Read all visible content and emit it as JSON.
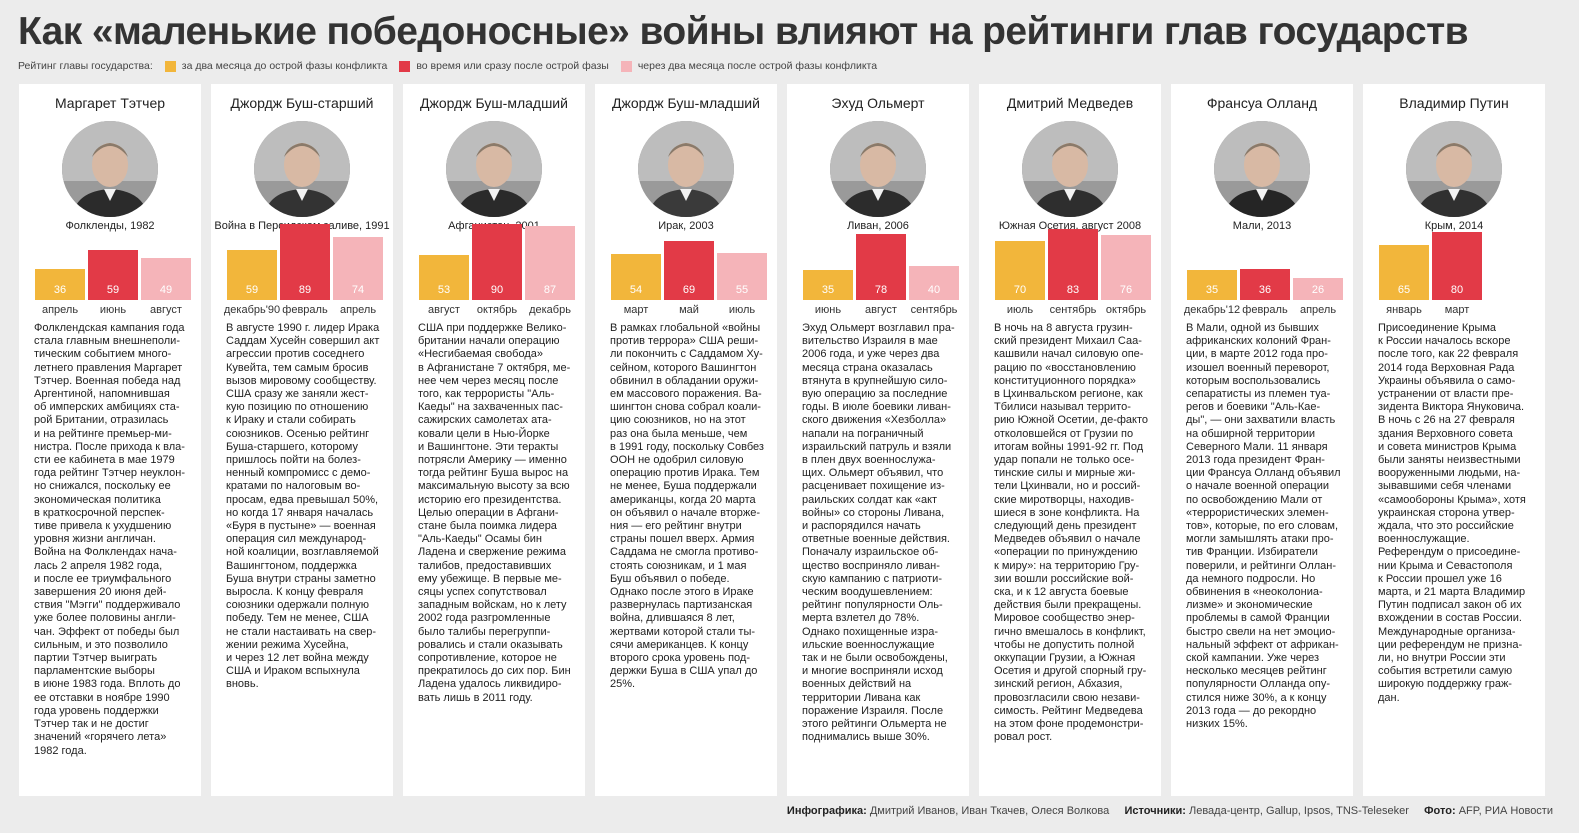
{
  "title": "Как «маленькие победоносные» войны влияют на рейтинги глав государств",
  "legend": {
    "label": "Рейтинг главы государства:",
    "items": [
      {
        "label": "за два месяца до острой фазы конфликта",
        "color": "#f2b63b"
      },
      {
        "label": "во время или сразу после острой фазы",
        "color": "#e23a47"
      },
      {
        "label": "через два месяца после острой фазы конфликта",
        "color": "#f5b4b9"
      }
    ]
  },
  "chart_data": {
    "type": "bar",
    "ylim": [
      0,
      100
    ],
    "series_names": [
      "за два месяца до острой фазы конфликта",
      "во время или сразу после острой фазы",
      "через два месяца после острой фазы конфликта"
    ],
    "colors": [
      "#f2b63b",
      "#e23a47",
      "#f5b4b9"
    ],
    "panels": [
      {
        "leader": "Маргарет Тэтчер",
        "event": "Фолкленды, 1982",
        "months": [
          "апрель",
          "июнь",
          "август"
        ],
        "values": [
          36,
          59,
          49
        ]
      },
      {
        "leader": "Джордж Буш-старший",
        "event": "Война в Персидском заливе, 1991",
        "months": [
          "декабрь'90",
          "февраль",
          "апрель"
        ],
        "values": [
          59,
          89,
          74
        ]
      },
      {
        "leader": "Джордж Буш-младший",
        "event": "Афганистан, 2001",
        "months": [
          "август",
          "октябрь",
          "декабрь"
        ],
        "values": [
          53,
          90,
          87
        ]
      },
      {
        "leader": "Джордж Буш-младший",
        "event": "Ирак, 2003",
        "months": [
          "март",
          "май",
          "июль"
        ],
        "values": [
          54,
          69,
          55
        ]
      },
      {
        "leader": "Эхуд Ольмерт",
        "event": "Ливан, 2006",
        "months": [
          "июнь",
          "август",
          "сентябрь"
        ],
        "values": [
          35,
          78,
          40
        ]
      },
      {
        "leader": "Дмитрий Медведев",
        "event": "Южная Осетия, август 2008",
        "months": [
          "июль",
          "сентябрь",
          "октябрь"
        ],
        "values": [
          70,
          83,
          76
        ]
      },
      {
        "leader": "Франсуа Олланд",
        "event": "Мали, 2013",
        "months": [
          "декабрь'12",
          "февраль",
          "апрель"
        ],
        "values": [
          35,
          36,
          26
        ]
      },
      {
        "leader": "Владимир Путин",
        "event": "Крым, 2014",
        "months": [
          "январь",
          "март"
        ],
        "values": [
          65,
          80
        ]
      }
    ]
  },
  "texts": [
    "Фолклендская кампания года\nстала главным внешнеполи-\nтическим событием много-\nлетнего правления Маргарет\nТэтчер. Военная победа над\nАргентиной, напомнившая\nоб имперских амбициях ста-\nрой Британии, отразилась\nи на рейтинге премьер-ми-\nнистра. После прихода к вла-\nсти ее кабинета в мае 1979\nгода рейтинг Тэтчер неуклон-\nно снижался, поскольку ее\nэкономическая политика\nв краткосрочной перспек-\nтиве привела к ухудшению\nуровня жизни англичан.\nВойна на Фолклендах нача-\nлась 2 апреля 1982 года,\nи после ее триумфального\nзавершения 20 июня дей-\nствия \"Мэгги\" поддерживало\nуже более половины англи-\nчан. Эффект от победы был\nсильным, и это позволило\nпартии Тэтчер выиграть\nпарламентские выборы\nв июне 1983 года. Вплоть до\nее отставки в ноябре 1990\nгода уровень поддержки\nТэтчер так и не достиг\nзначений «горячего лета»\n1982 года.",
    "В августе 1990 г. лидер Ирака\nСаддам Хусейн совершил акт\nагрессии против соседнего\nКувейта, тем самым бросив\nвызов мировому сообществу.\nСША сразу же заняли жест-\nкую позицию по отношению\nк Ираку и стали собирать\nсоюзников. Осенью рейтинг\nБуша-старшего, которому\nпришлось пойти на болез-\nненный компромисс с демо-\nкратами по налоговым во-\nпросам, едва превышал 50%,\nно когда 17 января началась\n«Буря в пустыне» — военная\nоперация сил международ-\nной коалиции, возглавляемой\nВашингтоном, поддержка\nБуша внутри страны заметно\nвыросла. К концу февраля\nсоюзники одержали полную\nпобеду. Тем не менее, США\nне стали настаивать на свер-\nжении режима Хусейна,\nи через 12 лет война между\nСША и Ираком вспыхнула\nвновь.",
    "США при поддержке Велико-\nбритании начали операцию\n«Несгибаемая свобода»\nв Афганистане 7 октября, ме-\nнее чем через месяц после\nтого, как террористы \"Аль-\nКаеды\" на захваченных пас-\nсажирских самолетах ата-\nковали цели в Нью-Йорке\nи Вашингтоне. Эти теракты\nпотрясли Америку — именно\nтогда рейтинг Буша вырос на\nмаксимальную высоту за всю\nисторию его президентства.\nЦелью операции в Афгани-\nстане была поимка лидера\n\"Аль-Каеды\" Осамы бин\nЛадена и свержение режима\nталибов, предоставивших\nему убежище. В первые ме-\nсяцы успех сопутствовал\nзападным войскам, но к лету\n2002 года разгромленные\nбыло талибы перегруппи-\nровались и стали оказывать\nсопротивление, которое не\nпрекратилось до сих пор. Бин\nЛадена удалось ликвидиро-\nвать лишь в 2011 году.",
    "В рамках глобальной «войны\nпротив террора» США реши-\nли покончить с Саддамом Ху-\nсейном, которого Вашингтон\nобвинил в обладании оружи-\nем массового поражения. Ва-\nшингтон снова собрал коали-\nцию союзников, но на этот\nраз она была меньше, чем\nв 1991 году, поскольку Совбез\nООН не одобрил силовую\nоперацию против Ирака. Тем\nне менее, Буша поддержали\nамериканцы, когда 20 марта\nон объявил о начале вторже-\nния — его рейтинг внутри\nстраны пошел вверх. Армия\nСаддама не смогла противо-\nстоять союзникам, и 1 мая\nБуш объявил о победе.\nОднако после этого в Ираке\nразвернулась партизанская\nвойна, длившаяся 8 лет,\nжертвами которой стали ты-\nсячи американцев. К концу\nвторого срока уровень под-\nдержки Буша в США упал до\n25%.",
    "Эхуд Ольмерт возглавил пра-\nвительство Израиля в мае\n2006 года, и уже через два\nмесяца страна оказалась\nвтянута в крупнейшую сило-\nвую операцию за последние\nгоды. В июле боевики ливан-\nского движения «Хезболла»\nнапали на пограничный\nизраильский патруль и взяли\nв плен двух военнослужа-\nщих. Ольмерт объявил, что\nрасценивает похищение из-\nраильских солдат как «акт\nвойны» со стороны Ливана,\nи распорядился начать\nответные военные действия.\nПоначалу израильское об-\nщество восприняло ливан-\nскую кампанию с патриоти-\nческим воодушевлением:\nрейтинг популярности Оль-\nмерта взлетел до 78%.\nОднако похищенные изра-\nильские военнослужащие\nтак и не были освобождены,\nи многие восприняли исход\nвоенных действий на\nтерритории Ливана как\nпоражение Израиля. После\nэтого рейтинги Ольмерта не\nподнимались выше 30%.",
    "В ночь на 8 августа грузин-\nский президент Михаил Саа-\nкашвили начал силовую опе-\nрацию по «восстановлению\nконституционного порядка»\nв Цхинвальском регионе, как\nТбилиси называл террито-\nрию Южной Осетии, де-факто\nотколовшейся от Грузии по\nитогам войны 1991-92 гг. Под\nудар попали не только осе-\nтинские силы и мирные жи-\nтели Цхинвали, но и россий-\nские миротворцы, находив-\nшиеся в зоне конфликта. На\nследующий день президент\nМедведев объявил о начале\n«операции по принуждению\nк миру»: на территорию Гру-\nзии вошли российские вой-\nска, и к 12 августа боевые\nдействия были прекращены.\nМировое сообщество энер-\nгично вмешалось в конфликт,\nчтобы не допустить полной\nоккупации Грузии, а Южная\nОсетия и другой спорный гру-\nзинский регион, Абхазия,\nпровозгласили свою незави-\nсимость. Рейтинг Медведева\nна этом фоне продемонстри-\nровал рост.",
    "В Мали, одной из бывших\nафриканских колоний Фран-\nции, в марте 2012 года про-\nизошел военный переворот,\nкоторым воспользовались\nсепаратисты из племен туа-\nрегов и боевики \"Аль-Каe-\nды\", — они захватили власть\nна обширной территории\nСеверного Мали. 11 января\n2013 года президент Фран-\nции Франсуа Олланд объявил\nо начале военной операции\nпо освобождению Мали от\n«террористических элемен-\nтов», которые, по его словам,\nмогли замышлять атаки про-\nтив Франции. Избиратели\nповерили, и рейтинги Оллан-\nда немного подросли. Но\nобвинения в «неоколониа-\nлизме» и экономические\nпроблемы в самой Франции\nбыстро свели на нет эмоцио-\nнальный эффект от африкан-\nской кампании. Уже через\nнесколько месяцев рейтинг\nпопулярности Олланда опу-\nстился ниже 30%, а к концу\n2013 года — до рекордно\nнизких 15%.",
    "Присоединение Крыма\nк России началось вскоре\nпосле того, как 22 февраля\n2014 года Верховная Рада\nУкраины объявила о само-\nустранении от власти пре-\nзидента Виктора Януковича.\nВ ночь с 26 на 27 февраля\nздания Верховного совета\nи совета министров Крыма\nбыли заняты неизвестными\nвооруженными людьми, на-\nзывавшими себя членами\n«самообороны Крыма», хотя\nукраинская сторона утвер-\nждала, что это российские\nвоеннослужащие.\nРеферендум о присоедине-\nнии Крыма и Севастополя\nк России прошел уже 16\nмарта, и 21 марта Владимир\nПутин подписал закон об их\nвхождении в состав России.\nМеждународные организа-\nции референдум не призна-\nли, но внутри России эти\nсобытия встретили самую\nширокую поддержку граж-\nдан."
  ],
  "footer": {
    "infographics_label": "Инфографика:",
    "infographics": "Дмитрий Иванов, Иван Ткачев, Олеся Волкова",
    "sources_label": "Источники:",
    "sources": "Левада-центр, Gallup, Ipsos, TNS-Teleseker",
    "photo_label": "Фото:",
    "photo": "AFP, РИА Новости"
  }
}
